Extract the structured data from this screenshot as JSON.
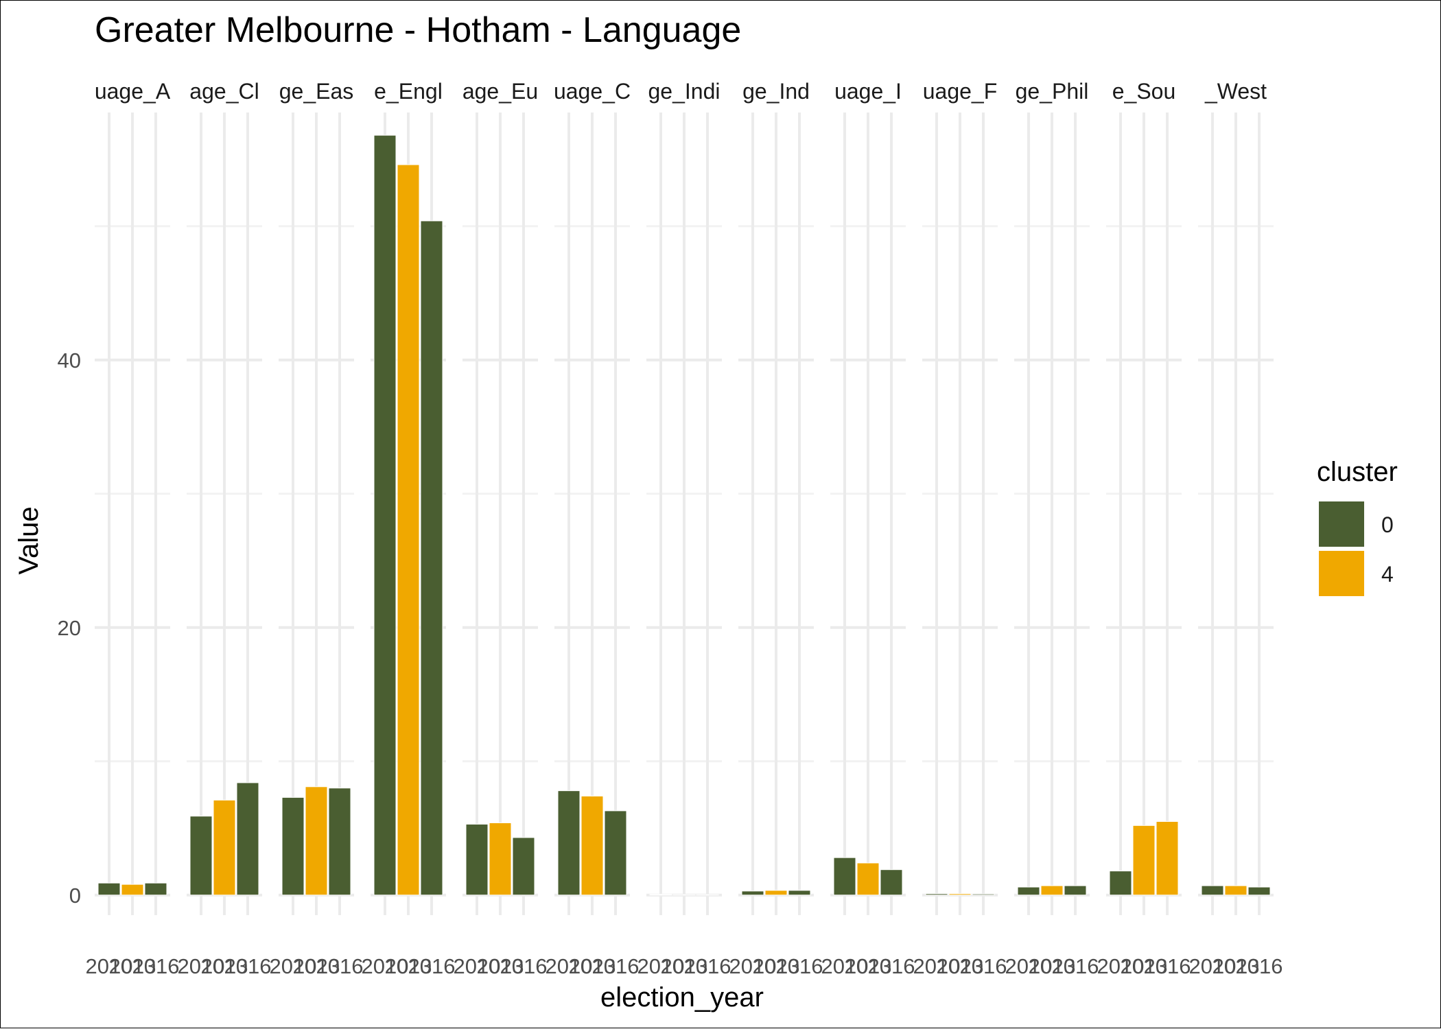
{
  "chart_data": {
    "type": "bar",
    "title": "Greater Melbourne - Hotham - Language",
    "xlabel": "election_year",
    "ylabel": "Value",
    "ylim": [
      -1.5,
      58.5
    ],
    "y_ticks": [
      0,
      20,
      40
    ],
    "grid": true,
    "legend": {
      "title": "cluster",
      "position": "right",
      "entries": [
        {
          "label": "0",
          "color": "#4a5e31"
        },
        {
          "label": "4",
          "color": "#f0a800"
        }
      ]
    },
    "categories": [
      "2010",
      "2013",
      "2016"
    ],
    "category_labels": [
      "2010",
      "2013",
      "2016"
    ],
    "facets": [
      {
        "strip": "uage_A",
        "values": [
          0.9,
          0.8,
          0.9
        ],
        "clusters": [
          "0",
          "4",
          "0"
        ]
      },
      {
        "strip": "age_Cl",
        "values": [
          5.9,
          7.1,
          8.4
        ],
        "clusters": [
          "0",
          "4",
          "0"
        ]
      },
      {
        "strip": "ge_Eas",
        "values": [
          7.3,
          8.1,
          8.0
        ],
        "clusters": [
          "0",
          "4",
          "0"
        ]
      },
      {
        "strip": "e_Engl",
        "values": [
          56.8,
          54.6,
          50.4
        ],
        "clusters": [
          "0",
          "4",
          "0"
        ]
      },
      {
        "strip": "age_Eu",
        "values": [
          5.3,
          5.4,
          4.3
        ],
        "clusters": [
          "0",
          "4",
          "0"
        ]
      },
      {
        "strip": "uage_C",
        "values": [
          7.8,
          7.4,
          6.3
        ],
        "clusters": [
          "0",
          "4",
          "0"
        ]
      },
      {
        "strip": "ge_Indi",
        "values": [
          0.05,
          0.0,
          0.0
        ],
        "clusters": [
          "0",
          "4",
          "0"
        ]
      },
      {
        "strip": "ge_Ind",
        "values": [
          0.3,
          0.35,
          0.35
        ],
        "clusters": [
          "0",
          "4",
          "0"
        ]
      },
      {
        "strip": "uage_I",
        "values": [
          2.8,
          2.4,
          1.9
        ],
        "clusters": [
          "0",
          "4",
          "0"
        ]
      },
      {
        "strip": "uage_F",
        "values": [
          0.1,
          0.1,
          0.08
        ],
        "clusters": [
          "0",
          "4",
          "0"
        ]
      },
      {
        "strip": "ge_Phil",
        "values": [
          0.6,
          0.7,
          0.7
        ],
        "clusters": [
          "0",
          "4",
          "0"
        ]
      },
      {
        "strip": "e_Sou",
        "values": [
          1.8,
          5.2,
          5.5
        ],
        "clusters": [
          "0",
          "4",
          "4"
        ]
      },
      {
        "strip": "_West",
        "values": [
          0.7,
          0.7,
          0.6
        ],
        "clusters": [
          "0",
          "4",
          "0"
        ]
      }
    ]
  }
}
